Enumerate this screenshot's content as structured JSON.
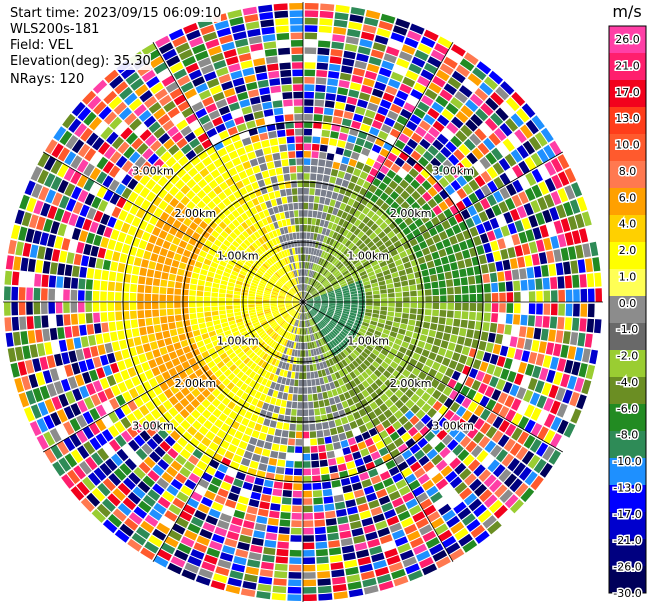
{
  "info": {
    "start_time": "Start time: 2023/09/15 06:09:10",
    "instrument": "WLS200s-181",
    "field": "Field: VEL",
    "elevation": "Elevation(deg): 35.30",
    "nrays": "NRays: 120"
  },
  "chart_data": {
    "type": "heatmap",
    "projection": "polar (PPI scan)",
    "unit": "m/s",
    "colorbar_ticks": [
      "26.0",
      "21.0",
      "17.0",
      "13.0",
      "10.0",
      "8.0",
      "6.0",
      "4.0",
      "2.0",
      "1.0",
      "0.0",
      "-1.0",
      "-2.0",
      "-4.0",
      "-6.0",
      "-8.0",
      "-10.0",
      "-13.0",
      "-17.0",
      "-21.0",
      "-26.0",
      "-30.0"
    ],
    "colorbar_colors": [
      "#ff3fa6",
      "#ff1f6d",
      "#f2021d",
      "#ff3d1a",
      "#ff5a2d",
      "#ff7950",
      "#ffa000",
      "#ffd000",
      "#ffff00",
      "#ffff55",
      "#8c8c8c",
      "#696969",
      "#9acd32",
      "#6b8e23",
      "#228b22",
      "#2e8b57",
      "#1e90ff",
      "#0000ff",
      "#0000cd",
      "#000080",
      "#00005a"
    ],
    "range_ring_labels": [
      "1.00km",
      "2.00km",
      "3.00km"
    ],
    "n_rays": 120
  }
}
